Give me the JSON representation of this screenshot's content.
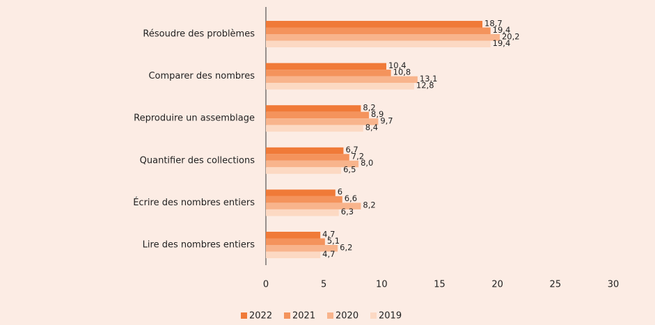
{
  "chart_data": {
    "type": "hbar",
    "categories": [
      "Résoudre des problèmes",
      "Comparer des nombres",
      "Reproduire un assemblage",
      "Quantifier des collections",
      "Écrire des nombres entiers",
      "Lire des nombres entiers"
    ],
    "series": [
      {
        "name": "2022",
        "color": "#f07a38",
        "values": [
          18.7,
          10.4,
          8.2,
          6.7,
          6,
          4.7
        ],
        "value_labels": [
          "18,7",
          "10,4",
          "8,2",
          "6,7",
          "6",
          "4,7"
        ]
      },
      {
        "name": "2021",
        "color": "#f4935c",
        "values": [
          19.4,
          10.8,
          8.9,
          7.2,
          6.6,
          5.1
        ],
        "value_labels": [
          "19,4",
          "10,8",
          "8,9",
          "7,2",
          "6,6",
          "5,1"
        ]
      },
      {
        "name": "2020",
        "color": "#f8b48c",
        "values": [
          20.2,
          13.1,
          9.7,
          8.0,
          8.2,
          6.2
        ],
        "value_labels": [
          "20,2",
          "13,1",
          "9,7",
          "8,0",
          "8,2",
          "6,2"
        ]
      },
      {
        "name": "2019",
        "color": "#fcd9c3",
        "values": [
          19.4,
          12.8,
          8.4,
          6.5,
          6.3,
          4.7
        ],
        "value_labels": [
          "19,4",
          "12,8",
          "8,4",
          "6,5",
          "6,3",
          "4,7"
        ]
      }
    ],
    "xlim": [
      0,
      30
    ],
    "xticks": [
      0,
      5,
      10,
      15,
      20,
      25,
      30
    ],
    "legend": "bottom"
  }
}
